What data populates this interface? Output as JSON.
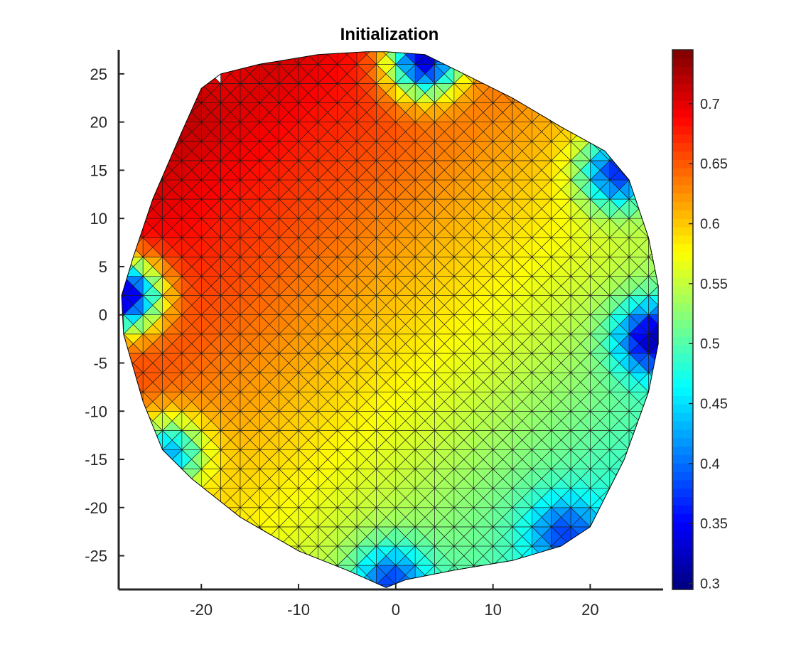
{
  "chart_data": {
    "type": "heatmap",
    "subtype": "triangular-mesh-surface",
    "title": "Initialization",
    "xlabel": "",
    "ylabel": "",
    "xlim": [
      -28.5,
      27.5
    ],
    "ylim": [
      -28.5,
      27.5
    ],
    "xticks": [
      -20,
      -10,
      0,
      10,
      20
    ],
    "xtick_labels": [
      "-20",
      "-10",
      "0",
      "10",
      "20"
    ],
    "yticks": [
      25,
      20,
      15,
      10,
      5,
      0,
      -5,
      -10,
      -15,
      -20,
      -25
    ],
    "ytick_labels": [
      "25",
      "20",
      "15",
      "10",
      "5",
      "0",
      "-5",
      "-10",
      "-15",
      "-20",
      "-25"
    ],
    "colormap": "jet",
    "clim": [
      0.295,
      0.745
    ],
    "colorbar_ticks": [
      0.3,
      0.35,
      0.4,
      0.45,
      0.5,
      0.55,
      0.6,
      0.65,
      0.7
    ],
    "colorbar_tick_labels": [
      "0.3",
      "0.35",
      "0.4",
      "0.45",
      "0.5",
      "0.55",
      "0.6",
      "0.65",
      "0.7"
    ],
    "mesh_spacing": 2,
    "grid": false,
    "boundary": [
      [
        -1,
        27.3
      ],
      [
        3,
        27
      ],
      [
        6,
        25.5
      ],
      [
        12,
        22.5
      ],
      [
        17,
        19.5
      ],
      [
        21.5,
        17
      ],
      [
        24,
        14
      ],
      [
        26,
        8
      ],
      [
        27,
        3
      ],
      [
        27,
        -3
      ],
      [
        26,
        -8
      ],
      [
        23.5,
        -15
      ],
      [
        20,
        -22
      ],
      [
        17,
        -24
      ],
      [
        12,
        -25.5
      ],
      [
        6,
        -26.5
      ],
      [
        1,
        -27.5
      ],
      [
        -1,
        -28.3
      ],
      [
        -5,
        -26.5
      ],
      [
        -10,
        -24.5
      ],
      [
        -16,
        -21
      ],
      [
        -21,
        -17
      ],
      [
        -24,
        -14
      ],
      [
        -26,
        -9
      ],
      [
        -28,
        -2
      ],
      [
        -28.2,
        2
      ],
      [
        -27,
        6
      ],
      [
        -25,
        12
      ],
      [
        -22,
        19
      ],
      [
        -20,
        23.5
      ],
      [
        -18,
        25
      ],
      [
        -14,
        26
      ],
      [
        -8,
        27
      ],
      [
        -3,
        27.3
      ]
    ],
    "value_field": {
      "model": "linear",
      "center_value": 0.6,
      "direction": [
        -1,
        1
      ],
      "slope": 0.00283
    },
    "low_value_spots": [
      {
        "x": 3,
        "y": 26.5,
        "value": 0.33
      },
      {
        "x": 22.8,
        "y": 14.8,
        "value": 0.37
      },
      {
        "x": 26.5,
        "y": -2.5,
        "value": 0.32
      },
      {
        "x": 17.5,
        "y": -22.8,
        "value": 0.38
      },
      {
        "x": -0.5,
        "y": -27.8,
        "value": 0.38
      },
      {
        "x": -23.5,
        "y": -14.5,
        "value": 0.43
      },
      {
        "x": -28,
        "y": 2,
        "value": 0.32
      },
      {
        "x": -17,
        "y": 24.8,
        "value": 0.7
      }
    ]
  }
}
